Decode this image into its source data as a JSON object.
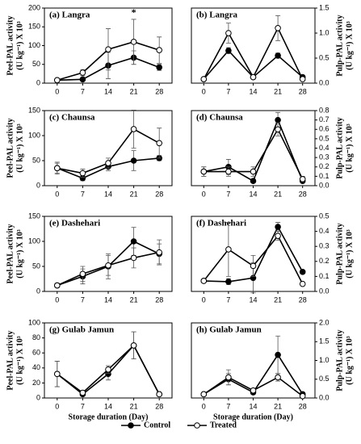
{
  "chart_data": [
    {
      "type": "line",
      "title": "(a) Langra",
      "ylabel": "Peel-PAL activity",
      "ylabel2": "(U kg⁻¹) X 10³",
      "y_axis_side": "left",
      "categories": [
        "0",
        "7",
        "14",
        "21",
        "28"
      ],
      "ylim": [
        0,
        200
      ],
      "yticks": [
        0,
        50,
        100,
        150,
        200
      ],
      "annotations": [
        {
          "text": "*",
          "x": "21"
        }
      ],
      "series": [
        {
          "color": "#000000",
          "marker_fill": "#000000",
          "values": [
            8,
            10,
            47,
            68,
            42
          ],
          "errors": [
            1,
            2,
            35,
            18,
            8
          ]
        },
        {
          "color": "#000000",
          "marker_fill": "#ffffff",
          "values": [
            8,
            28,
            90,
            110,
            88
          ],
          "errors": [
            3,
            8,
            55,
            60,
            35
          ]
        }
      ]
    },
    {
      "type": "line",
      "title": "(b) Langra",
      "ylabel": "Pulp-PAL activity",
      "ylabel2": "(U kg⁻¹) X 10³",
      "y_axis_side": "right",
      "categories": [
        "0",
        "7",
        "14",
        "21",
        "28"
      ],
      "ylim": [
        0,
        1.5
      ],
      "yticks": [
        {
          "value": 0,
          "label": "0.0"
        },
        0.5,
        {
          "value": 1,
          "label": "1.0"
        },
        1.5
      ],
      "series": [
        {
          "color": "#000000",
          "marker_fill": "#000000",
          "values": [
            0.08,
            0.65,
            0.12,
            0.55,
            0.12
          ],
          "errors": [
            0.01,
            0.06,
            0.02,
            0.05,
            0.02
          ]
        },
        {
          "color": "#000000",
          "marker_fill": "#ffffff",
          "values": [
            0.08,
            1.0,
            0.12,
            1.1,
            0.08
          ],
          "errors": [
            0.01,
            0.2,
            0.03,
            0.25,
            0.01
          ]
        }
      ]
    },
    {
      "type": "line",
      "title": "(c) Chaunsa",
      "ylabel": "Peel-PAL activity",
      "ylabel2": "(U kg⁻¹) X 10³",
      "y_axis_side": "left",
      "categories": [
        "0",
        "7",
        "14",
        "21",
        "28"
      ],
      "ylim": [
        0,
        150
      ],
      "yticks": [
        0,
        50,
        100,
        150
      ],
      "series": [
        {
          "color": "#000000",
          "marker_fill": "#000000",
          "values": [
            35,
            15,
            38,
            50,
            55
          ],
          "errors": [
            12,
            5,
            8,
            20,
            5
          ]
        },
        {
          "color": "#000000",
          "marker_fill": "#ffffff",
          "values": [
            35,
            25,
            45,
            113,
            85
          ],
          "errors": [
            10,
            8,
            10,
            38,
            30
          ]
        }
      ]
    },
    {
      "type": "line",
      "title": "(d) Chaunsa",
      "ylabel": "Pulp-PAL activity",
      "ylabel2": "(U kg⁻¹) X 10³",
      "y_axis_side": "right",
      "categories": [
        "0",
        "7",
        "14",
        "21",
        "28"
      ],
      "ylim": [
        0,
        0.8
      ],
      "yticks": [
        {
          "value": 0,
          "label": "0.0"
        },
        0.1,
        0.2,
        0.3,
        0.4,
        0.5,
        0.6,
        0.7,
        0.8
      ],
      "series": [
        {
          "color": "#000000",
          "marker_fill": "#000000",
          "values": [
            0.15,
            0.2,
            0.05,
            0.7,
            0.05
          ],
          "errors": [
            0.05,
            0.08,
            0.02,
            0.08,
            0.02
          ]
        },
        {
          "color": "#000000",
          "marker_fill": "#ffffff",
          "values": [
            0.15,
            0.15,
            0.15,
            0.6,
            0.07
          ],
          "errors": [
            0.05,
            0.05,
            0.05,
            0.07,
            0.03
          ]
        }
      ]
    },
    {
      "type": "line",
      "title": "(e) Dashehari",
      "ylabel": "Peel-PAL activity",
      "ylabel2": "(U kg⁻¹) X 10³",
      "y_axis_side": "left",
      "categories": [
        "0",
        "7",
        "14",
        "21",
        "28"
      ],
      "ylim": [
        0,
        150
      ],
      "yticks": [
        0,
        50,
        100,
        150
      ],
      "series": [
        {
          "color": "#000000",
          "marker_fill": "#000000",
          "values": [
            12,
            30,
            50,
            100,
            75
          ],
          "errors": [
            4,
            15,
            25,
            28,
            20
          ]
        },
        {
          "color": "#000000",
          "marker_fill": "#ffffff",
          "values": [
            12,
            35,
            52,
            67,
            78
          ],
          "errors": [
            4,
            15,
            20,
            20,
            25
          ]
        }
      ]
    },
    {
      "type": "line",
      "title": "(f) Dashehari",
      "ylabel": "Pulp-PAL activity",
      "ylabel2": "(U kg⁻¹) X 10³",
      "y_axis_side": "right",
      "categories": [
        "0",
        "7",
        "14",
        "21",
        "28"
      ],
      "ylim": [
        0,
        0.5
      ],
      "yticks": [
        {
          "value": 0,
          "label": "0.0"
        },
        0.1,
        0.2,
        0.3,
        0.4,
        0.5
      ],
      "series": [
        {
          "color": "#000000",
          "marker_fill": "#000000",
          "values": [
            0.07,
            0.065,
            0.09,
            0.43,
            0.13
          ],
          "errors": [
            0.005,
            0.02,
            0.1,
            0.03,
            0.01
          ]
        },
        {
          "color": "#000000",
          "marker_fill": "#ffffff",
          "values": [
            0.07,
            0.28,
            0.17,
            0.37,
            0.05
          ],
          "errors": [
            0.005,
            0.18,
            0.07,
            0.03,
            0.005
          ]
        }
      ]
    },
    {
      "type": "line",
      "title": "(g) Gulab Jamun",
      "ylabel": "Peel-PAL activity",
      "ylabel2": "(U kg⁻¹) X 10³",
      "y_axis_side": "left",
      "xlabel": "Storage duration (Day)",
      "legend": "bottom",
      "categories": [
        "0",
        "7",
        "14",
        "21",
        "28"
      ],
      "ylim": [
        0,
        100
      ],
      "yticks": [
        0,
        20,
        40,
        60,
        80,
        100
      ],
      "series": [
        {
          "name": "Control",
          "color": "#000000",
          "marker_fill": "#000000",
          "values": [
            32,
            5,
            32,
            70,
            5
          ],
          "errors": [
            17,
            2,
            8,
            18,
            1
          ]
        },
        {
          "name": "Treated",
          "color": "#000000",
          "marker_fill": "#ffffff",
          "values": [
            32,
            7,
            38,
            70,
            5
          ],
          "errors": [
            17,
            2,
            5,
            18,
            1
          ]
        }
      ]
    },
    {
      "type": "line",
      "title": "(h) Gulab Jamun",
      "ylabel": "Pulp-PAL activity",
      "ylabel2": "(U kg⁻¹) X 10³",
      "y_axis_side": "right",
      "xlabel": "Storage duration (Day)",
      "categories": [
        "0",
        "7",
        "14",
        "21",
        "28"
      ],
      "ylim": [
        0,
        2.0
      ],
      "yticks": [
        {
          "value": 0,
          "label": "0.0"
        },
        0.5,
        {
          "value": 1,
          "label": "1.0"
        },
        1.5,
        {
          "value": 2,
          "label": "2.0"
        }
      ],
      "series": [
        {
          "color": "#000000",
          "marker_fill": "#000000",
          "values": [
            0.1,
            0.5,
            0.15,
            1.15,
            0.1
          ],
          "errors": [
            0.02,
            0.15,
            0.05,
            0.5,
            0.05
          ]
        },
        {
          "color": "#000000",
          "marker_fill": "#ffffff",
          "values": [
            0.1,
            0.55,
            0.2,
            0.55,
            0.05
          ],
          "errors": [
            0.02,
            0.2,
            0.05,
            0.1,
            0.02
          ]
        }
      ]
    }
  ]
}
